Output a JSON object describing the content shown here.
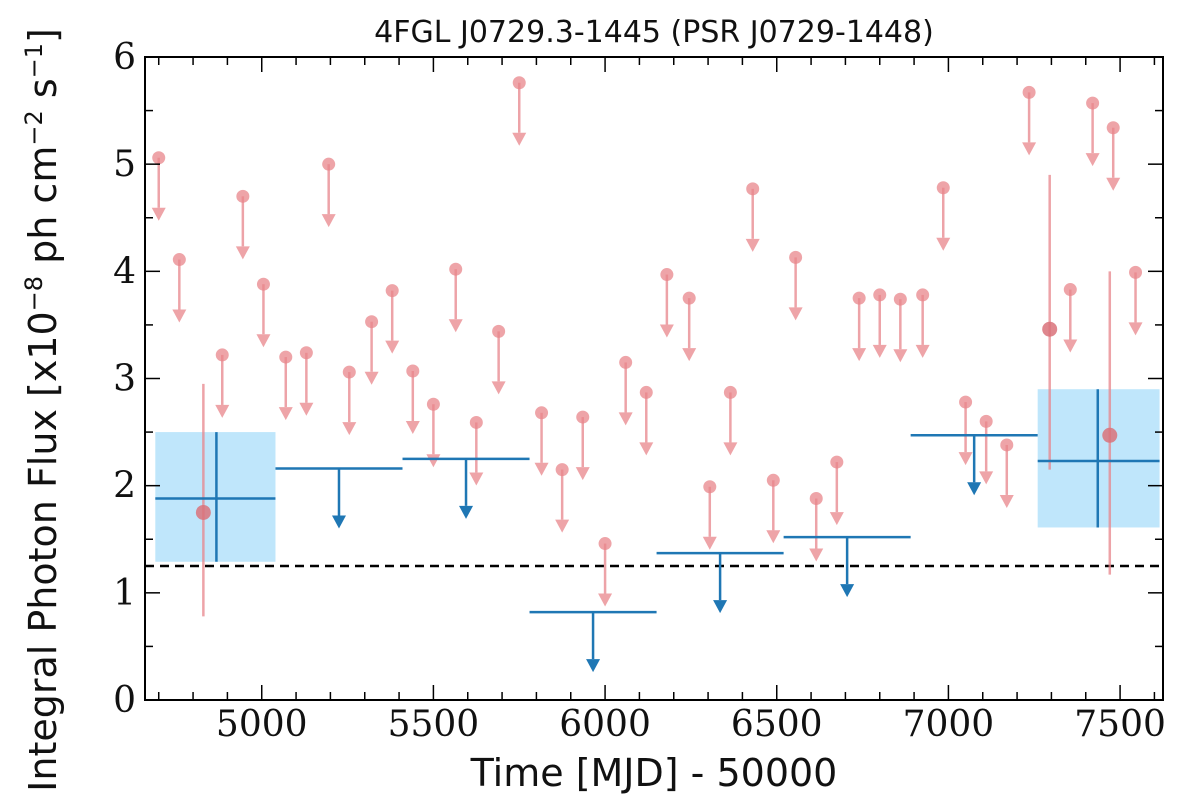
{
  "chart_data": {
    "type": "scatter",
    "title": "4FGL J0729.3-1445 (PSR J0729-1448)",
    "xlabel": "Time [MJD] - 50000",
    "ylabel": "Integral Photon Flux [x10^{-8} ph cm^{-2} s^{-1}]",
    "ylabel_parts": [
      "Integral Photon Flux [x10",
      "−8",
      " ph cm",
      "−2",
      " s",
      "−1",
      "]"
    ],
    "xlim": [
      4660,
      7625
    ],
    "ylim": [
      0,
      6
    ],
    "x_ticks": [
      5000,
      5500,
      6000,
      6500,
      7000,
      7500
    ],
    "y_ticks": [
      0,
      1,
      2,
      3,
      4,
      5,
      6
    ],
    "grid": false,
    "reference_line": {
      "y": 1.25,
      "style": "dashed",
      "color": "#000000"
    },
    "colors": {
      "short_bin": "#e8858b",
      "long_bin": "#1f77b4",
      "detection_band": "#bfe6fb"
    },
    "short_bins_upper_limits": [
      {
        "x": 4700,
        "y": 5.06
      },
      {
        "x": 4760,
        "y": 4.11
      },
      {
        "x": 4885,
        "y": 3.22
      },
      {
        "x": 4945,
        "y": 4.7
      },
      {
        "x": 5005,
        "y": 3.88
      },
      {
        "x": 5070,
        "y": 3.2
      },
      {
        "x": 5130,
        "y": 3.24
      },
      {
        "x": 5195,
        "y": 5.0
      },
      {
        "x": 5255,
        "y": 3.06
      },
      {
        "x": 5320,
        "y": 3.53
      },
      {
        "x": 5380,
        "y": 3.82
      },
      {
        "x": 5440,
        "y": 3.07
      },
      {
        "x": 5500,
        "y": 2.76
      },
      {
        "x": 5565,
        "y": 4.02
      },
      {
        "x": 5625,
        "y": 2.59
      },
      {
        "x": 5690,
        "y": 3.44
      },
      {
        "x": 5750,
        "y": 5.76
      },
      {
        "x": 5815,
        "y": 2.68
      },
      {
        "x": 5875,
        "y": 2.15
      },
      {
        "x": 5935,
        "y": 2.64
      },
      {
        "x": 6000,
        "y": 1.46
      },
      {
        "x": 6060,
        "y": 3.15
      },
      {
        "x": 6120,
        "y": 2.87
      },
      {
        "x": 6180,
        "y": 3.97
      },
      {
        "x": 6245,
        "y": 3.75
      },
      {
        "x": 6305,
        "y": 1.99
      },
      {
        "x": 6365,
        "y": 2.87
      },
      {
        "x": 6430,
        "y": 4.77
      },
      {
        "x": 6490,
        "y": 2.05
      },
      {
        "x": 6555,
        "y": 4.13
      },
      {
        "x": 6615,
        "y": 1.88
      },
      {
        "x": 6675,
        "y": 2.22
      },
      {
        "x": 6740,
        "y": 3.75
      },
      {
        "x": 6800,
        "y": 3.78
      },
      {
        "x": 6860,
        "y": 3.74
      },
      {
        "x": 6925,
        "y": 3.78
      },
      {
        "x": 6985,
        "y": 4.78
      },
      {
        "x": 7050,
        "y": 2.78
      },
      {
        "x": 7110,
        "y": 2.6
      },
      {
        "x": 7170,
        "y": 2.38
      },
      {
        "x": 7235,
        "y": 5.67
      },
      {
        "x": 7355,
        "y": 3.83
      },
      {
        "x": 7420,
        "y": 5.57
      },
      {
        "x": 7480,
        "y": 5.34
      },
      {
        "x": 7545,
        "y": 3.99
      }
    ],
    "short_bins_detections": [
      {
        "x": 4830,
        "y": 1.75,
        "ylo": 0.78,
        "yhi": 2.95
      },
      {
        "x": 7295,
        "y": 3.46,
        "ylo": 2.15,
        "yhi": 4.9
      },
      {
        "x": 7470,
        "y": 2.47,
        "ylo": 1.17,
        "yhi": 4.0
      }
    ],
    "long_bins_upper_limits": [
      {
        "x": 5225,
        "x_lo": 5040,
        "x_hi": 5410,
        "y": 2.16
      },
      {
        "x": 5595,
        "x_lo": 5410,
        "x_hi": 5780,
        "y": 2.25
      },
      {
        "x": 5965,
        "x_lo": 5780,
        "x_hi": 6150,
        "y": 0.82
      },
      {
        "x": 6335,
        "x_lo": 6150,
        "x_hi": 6520,
        "y": 1.37
      },
      {
        "x": 6705,
        "x_lo": 6520,
        "x_hi": 6890,
        "y": 1.52
      },
      {
        "x": 7075,
        "x_lo": 6890,
        "x_hi": 7260,
        "y": 2.47
      }
    ],
    "long_bins_detections": [
      {
        "x": 4868,
        "x_lo": 4690,
        "x_hi": 5040,
        "y": 1.88,
        "ylo": 1.29,
        "yhi": 2.5
      },
      {
        "x": 7435,
        "x_lo": 7260,
        "x_hi": 7615,
        "y": 2.23,
        "ylo": 1.61,
        "yhi": 2.9
      }
    ]
  }
}
